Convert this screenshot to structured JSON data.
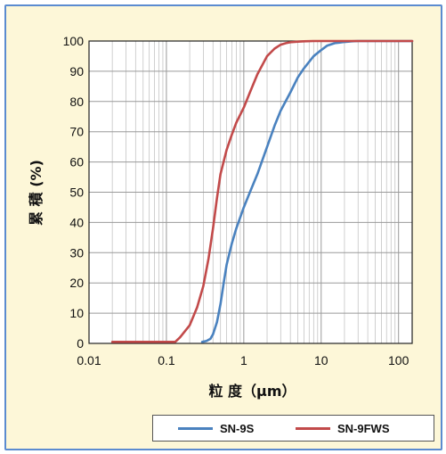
{
  "chart_data": {
    "type": "line",
    "xlabel": "粒 度（μm）",
    "ylabel": "累 積 (%)",
    "xscale": "log",
    "xlim": [
      0.01,
      150
    ],
    "ylim": [
      0,
      100
    ],
    "grid": true,
    "x_ticks": [
      "0.01",
      "0.1",
      "1",
      "10",
      "100"
    ],
    "y_ticks": [
      "0",
      "10",
      "20",
      "30",
      "40",
      "50",
      "60",
      "70",
      "80",
      "90",
      "100"
    ],
    "legend_position": "bottom-right",
    "series": [
      {
        "name": "SN-9S",
        "color": "#4a82bf",
        "x": [
          0.29,
          0.33,
          0.37,
          0.4,
          0.45,
          0.5,
          0.55,
          0.6,
          0.7,
          0.8,
          1.0,
          1.2,
          1.5,
          2.0,
          2.5,
          3.0,
          4.0,
          5.0,
          6.0,
          8.0,
          10,
          12,
          15,
          20,
          25,
          30,
          40,
          60,
          100,
          150
        ],
        "y": [
          0.5,
          0.8,
          1.5,
          3,
          7,
          13,
          20,
          26,
          33,
          38,
          45,
          50,
          56,
          65,
          72,
          77,
          83,
          88,
          91,
          95,
          97,
          98.5,
          99.3,
          99.7,
          99.9,
          100,
          100,
          100,
          100,
          100
        ]
      },
      {
        "name": "SN-9FWS",
        "color": "#c24a4a",
        "x": [
          0.02,
          0.03,
          0.05,
          0.1,
          0.13,
          0.15,
          0.2,
          0.25,
          0.3,
          0.35,
          0.4,
          0.45,
          0.5,
          0.6,
          0.7,
          0.8,
          1.0,
          1.2,
          1.5,
          2.0,
          2.5,
          3.0,
          3.5,
          4.0,
          5.0,
          6.0,
          8.0,
          10,
          15,
          20,
          30,
          50,
          100,
          150
        ],
        "y": [
          0.5,
          0.5,
          0.5,
          0.5,
          0.5,
          2,
          6,
          12,
          19,
          28,
          38,
          48,
          56,
          64,
          69,
          73,
          78,
          83,
          89,
          95,
          97.5,
          98.8,
          99.3,
          99.6,
          99.8,
          99.9,
          100,
          100,
          100,
          100,
          100,
          100,
          100,
          100
        ]
      }
    ]
  }
}
